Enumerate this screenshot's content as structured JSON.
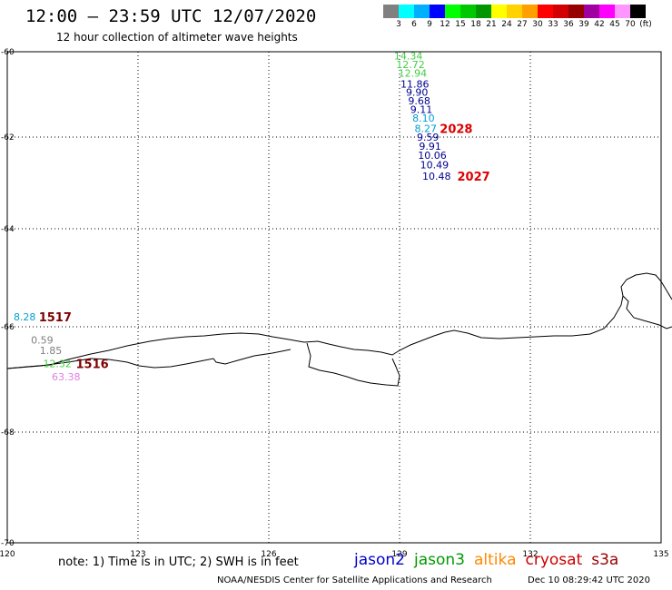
{
  "header": {
    "title": "12:00 – 23:59 UTC 12/07/2020",
    "subtitle": "12 hour collection of altimeter wave heights"
  },
  "colorbar": {
    "colors": [
      "#808080",
      "#00ffff",
      "#00b0ff",
      "#0000ff",
      "#00ff00",
      "#00c800",
      "#009600",
      "#ffff00",
      "#ffd200",
      "#ffa000",
      "#ff0000",
      "#d20000",
      "#960000",
      "#a000a0",
      "#ff00ff",
      "#ff96ff",
      "#000000"
    ],
    "labels": [
      "3",
      "6",
      "9",
      "12",
      "15",
      "18",
      "21",
      "24",
      "27",
      "30",
      "33",
      "36",
      "39",
      "42",
      "45",
      "70",
      "(ft)"
    ]
  },
  "axes": {
    "lat_labels": [
      "-60",
      "-62",
      "-64",
      "-66",
      "-68",
      "-70"
    ],
    "lon_labels": [
      "120",
      "123",
      "126",
      "129",
      "132",
      "135"
    ]
  },
  "observations": [
    {
      "value": "14.34",
      "lon": 129.2,
      "lat": -60.1,
      "color": "#44cc44"
    },
    {
      "value": "12.72",
      "lon": 129.25,
      "lat": -60.3,
      "color": "#44cc44"
    },
    {
      "value": "12.94",
      "lon": 129.3,
      "lat": -60.5,
      "color": "#44cc44"
    },
    {
      "value": "11.86",
      "lon": 129.35,
      "lat": -60.75,
      "color": "#000090"
    },
    {
      "value": "9.90",
      "lon": 129.4,
      "lat": -60.95,
      "color": "#000090"
    },
    {
      "value": "9.68",
      "lon": 129.45,
      "lat": -61.15,
      "color": "#000090"
    },
    {
      "value": "9.11",
      "lon": 129.5,
      "lat": -61.35,
      "color": "#000090"
    },
    {
      "value": "8.10",
      "lon": 129.55,
      "lat": -61.55,
      "color": "#00a0d0"
    },
    {
      "value": "8.27",
      "lon": 129.6,
      "lat": -61.8,
      "color": "#00a0d0"
    },
    {
      "value": "9.59",
      "lon": 129.65,
      "lat": -62.0,
      "color": "#000090"
    },
    {
      "value": "9.91",
      "lon": 129.7,
      "lat": -62.2,
      "color": "#000090"
    },
    {
      "value": "10.06",
      "lon": 129.75,
      "lat": -62.4,
      "color": "#000090"
    },
    {
      "value": "10.49",
      "lon": 129.8,
      "lat": -62.6,
      "color": "#000090"
    },
    {
      "value": "10.48",
      "lon": 129.85,
      "lat": -62.85,
      "color": "#000090"
    },
    {
      "value": "8.28",
      "lon": 120.4,
      "lat": -65.8,
      "color": "#00a0d0"
    },
    {
      "value": "0.59",
      "lon": 120.8,
      "lat": -66.25,
      "color": "#808080"
    },
    {
      "value": "1.85",
      "lon": 121.0,
      "lat": -66.45,
      "color": "#808080"
    },
    {
      "value": "12.32",
      "lon": 121.15,
      "lat": -66.7,
      "color": "#44cc44"
    },
    {
      "value": "63.38",
      "lon": 121.35,
      "lat": -66.95,
      "color": "#e080e0"
    }
  ],
  "pass_times": [
    {
      "label": "2028",
      "lon": 130.3,
      "lat": -61.8,
      "color": "#dd0000"
    },
    {
      "label": "2027",
      "lon": 130.7,
      "lat": -62.85,
      "color": "#dd0000"
    },
    {
      "label": "1517",
      "lon": 121.1,
      "lat": -65.8,
      "color": "#800000"
    },
    {
      "label": "1516",
      "lon": 121.95,
      "lat": -66.7,
      "color": "#800000"
    }
  ],
  "footer": {
    "note": "note: 1) Time is in UTC; 2) SWH is in feet",
    "satellites": [
      {
        "name": "jason2",
        "color": "#0000cc"
      },
      {
        "name": "jason3",
        "color": "#009900"
      },
      {
        "name": "altika",
        "color": "#ff8800"
      },
      {
        "name": "cryosat",
        "color": "#cc0000"
      },
      {
        "name": "s3a",
        "color": "#990000"
      }
    ],
    "credit": "NOAA/NESDIS Center for Satellite Applications and Research",
    "timestamp": "Dec 10 08:29:42 UTC 2020"
  }
}
